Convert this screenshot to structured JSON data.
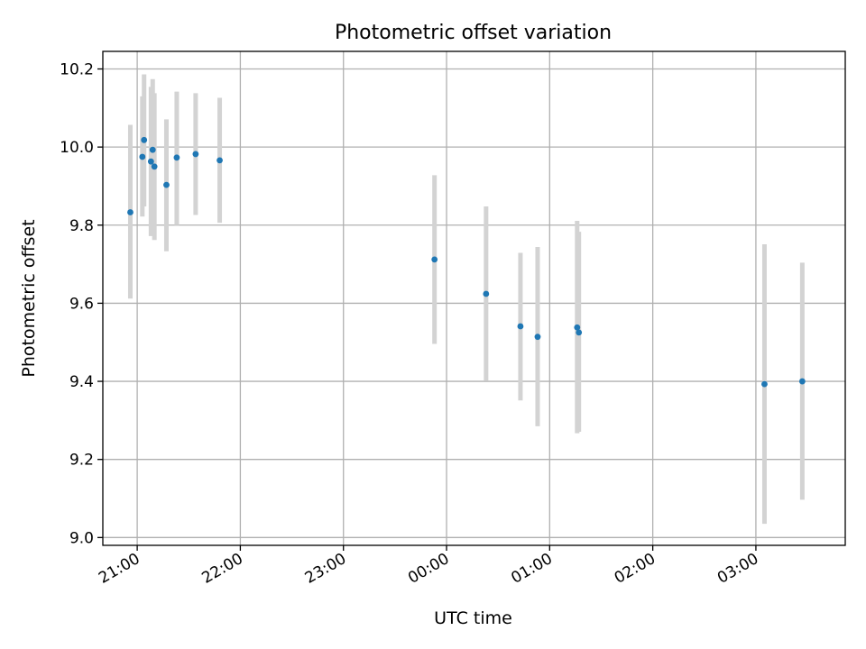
{
  "chart_data": {
    "type": "scatter",
    "title": "Photometric offset variation",
    "xlabel": "UTC time",
    "ylabel": "Photometric offset",
    "x_unit": "hours",
    "xlim": [
      "20:40",
      "03:52"
    ],
    "ylim": [
      8.98,
      10.245
    ],
    "xticks": [
      "21:00",
      "22:00",
      "23:00",
      "00:00",
      "01:00",
      "02:00",
      "03:00"
    ],
    "yticks": [
      9.0,
      9.2,
      9.4,
      9.6,
      9.8,
      10.0,
      10.2
    ],
    "grid": true,
    "colors": {
      "marker": "#1f77b4",
      "errorbar": "#d3d3d3",
      "grid": "#b0b0b0"
    },
    "points": [
      {
        "x": "20:56",
        "y": 9.833,
        "ylow": 9.612,
        "yhigh": 10.057
      },
      {
        "x": "21:03",
        "y": 9.975,
        "ylow": 9.822,
        "yhigh": 10.13
      },
      {
        "x": "21:04",
        "y": 10.018,
        "ylow": 9.848,
        "yhigh": 10.186
      },
      {
        "x": "21:08",
        "y": 9.963,
        "ylow": 9.772,
        "yhigh": 10.154
      },
      {
        "x": "21:09",
        "y": 9.993,
        "ylow": 9.812,
        "yhigh": 10.174
      },
      {
        "x": "21:10",
        "y": 9.95,
        "ylow": 9.762,
        "yhigh": 10.138
      },
      {
        "x": "21:17",
        "y": 9.903,
        "ylow": 9.733,
        "yhigh": 10.071
      },
      {
        "x": "21:23",
        "y": 9.973,
        "ylow": 9.8,
        "yhigh": 10.142
      },
      {
        "x": "21:34",
        "y": 9.982,
        "ylow": 9.826,
        "yhigh": 10.138
      },
      {
        "x": "21:48",
        "y": 9.966,
        "ylow": 9.806,
        "yhigh": 10.126
      },
      {
        "x": "23:53",
        "y": 9.712,
        "ylow": 9.496,
        "yhigh": 9.928
      },
      {
        "x": "00:23",
        "y": 9.624,
        "ylow": 9.402,
        "yhigh": 9.848
      },
      {
        "x": "00:43",
        "y": 9.541,
        "ylow": 9.351,
        "yhigh": 9.729
      },
      {
        "x": "00:53",
        "y": 9.514,
        "ylow": 9.285,
        "yhigh": 9.744
      },
      {
        "x": "01:16",
        "y": 9.538,
        "ylow": 9.267,
        "yhigh": 9.811
      },
      {
        "x": "01:17",
        "y": 9.525,
        "ylow": 9.271,
        "yhigh": 9.783
      },
      {
        "x": "03:05",
        "y": 9.393,
        "ylow": 9.035,
        "yhigh": 9.751
      },
      {
        "x": "03:27",
        "y": 9.4,
        "ylow": 9.097,
        "yhigh": 9.704
      }
    ]
  }
}
